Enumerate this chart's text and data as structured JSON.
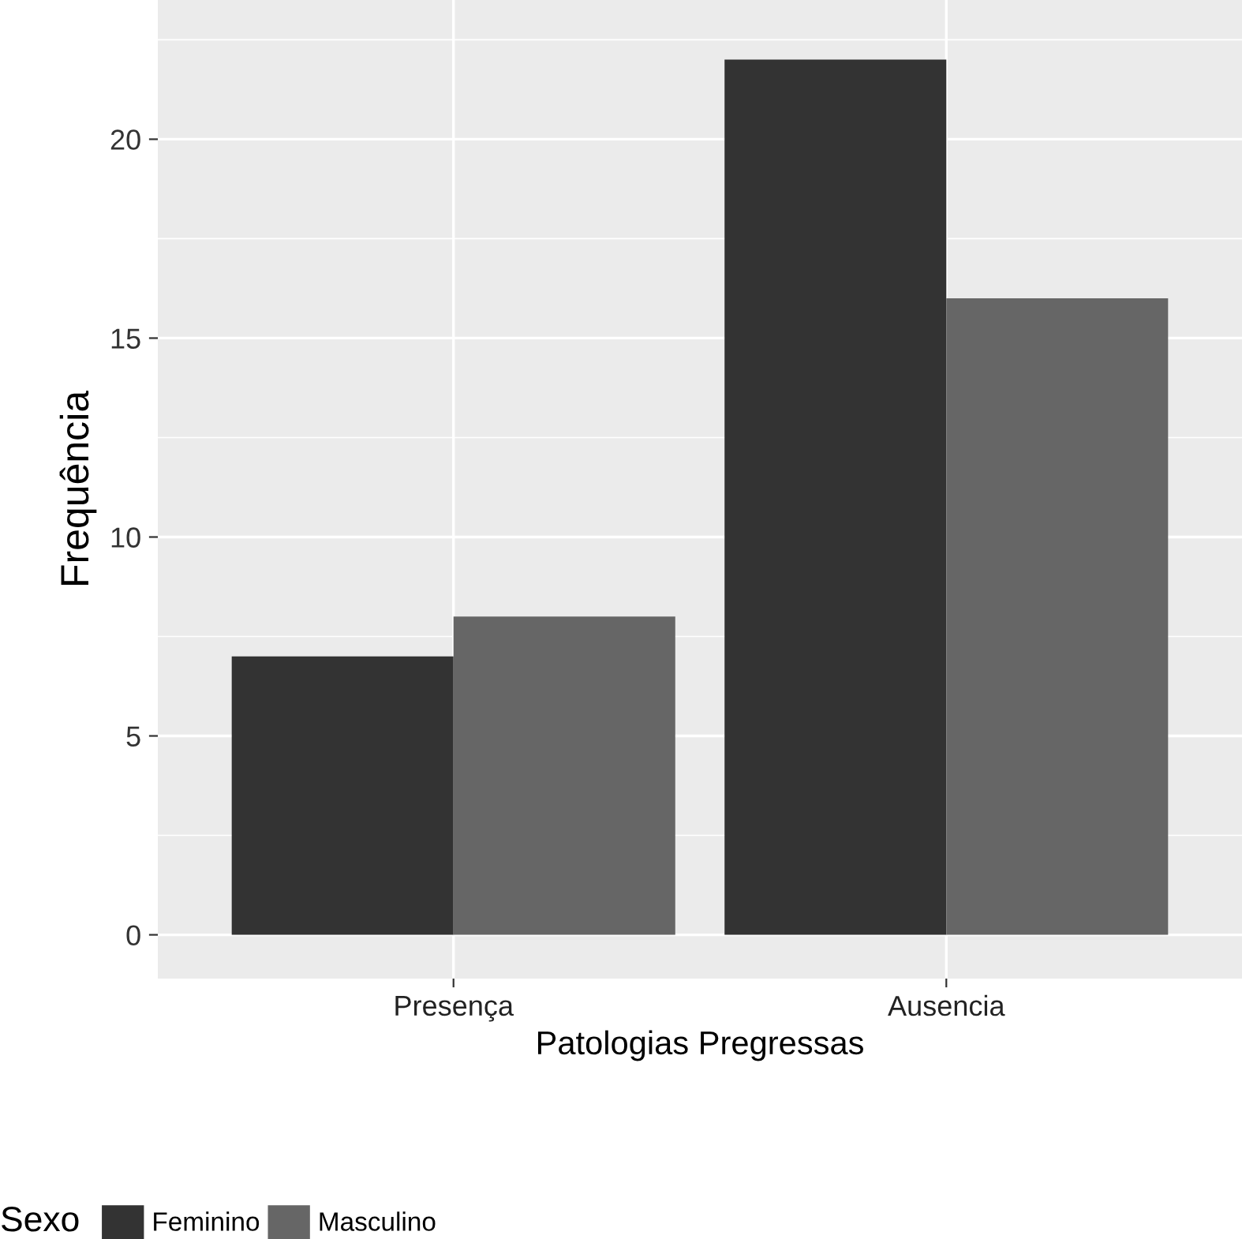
{
  "chart_data": {
    "type": "bar",
    "xlabel": "Patologias Pregressas",
    "ylabel": "Frequência",
    "legend_title": "Sexo",
    "categories": [
      "Presença",
      "Ausencia"
    ],
    "series": [
      {
        "name": "Feminino",
        "color": "#333333",
        "values": [
          7,
          22
        ]
      },
      {
        "name": "Masculino",
        "color": "#666666",
        "values": [
          8,
          16
        ]
      }
    ],
    "ylim": [
      -1.1,
      23.5
    ],
    "yticks": [
      0,
      5,
      10,
      15,
      20
    ],
    "grid": true,
    "legend": "bottom"
  }
}
